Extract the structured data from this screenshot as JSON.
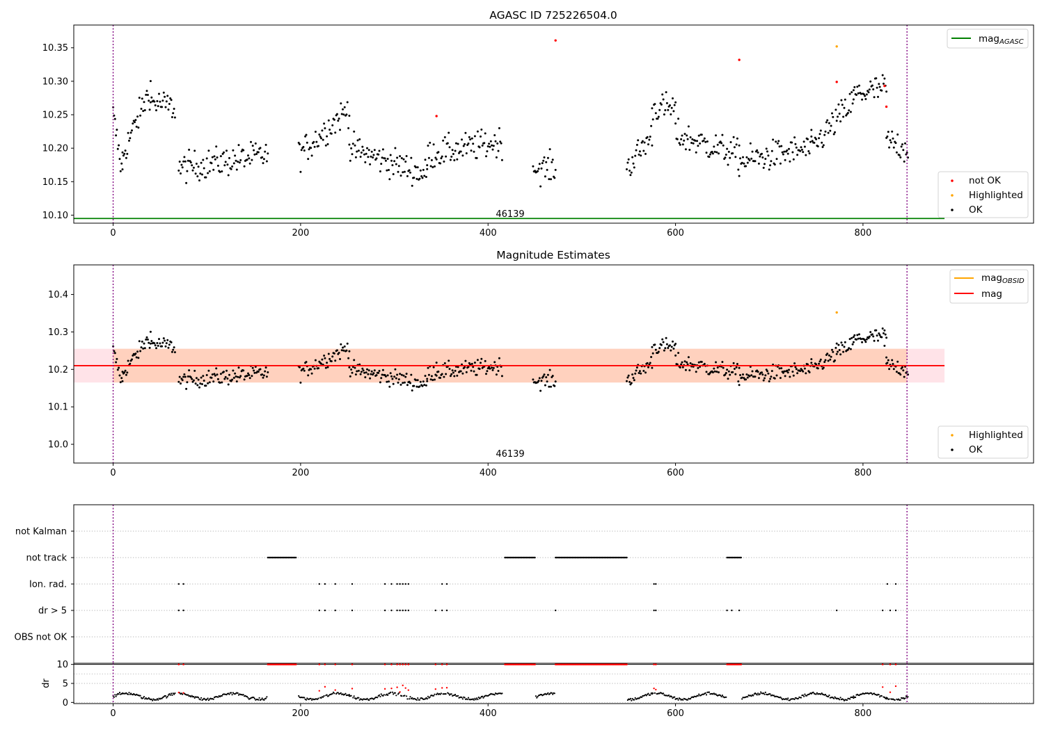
{
  "figure": {
    "title_top": "AGASC ID 725226504.0",
    "title_mid": "Magnitude Estimates",
    "obsid_label_top": "46139",
    "obsid_label_mid": "46139"
  },
  "colors": {
    "ok": "#000000",
    "not_ok": "#ff0000",
    "highlighted": "#ffa500",
    "mag_agasc": "#008000",
    "mag_obsid": "#ffa500",
    "mag": "#ff0000",
    "band_outer": "#ffc0cb",
    "band_inner": "#ffc8a8",
    "obs_boundary": "#800080"
  },
  "legends": {
    "top_line": "mag_AGASC",
    "top_points": [
      "not OK",
      "Highlighted",
      "OK"
    ],
    "mid_lines": [
      "mag_OBSID",
      "mag"
    ],
    "mid_points": [
      "Highlighted",
      "OK"
    ]
  },
  "chart_data": [
    {
      "type": "scatter",
      "title": "AGASC ID 725226504.0",
      "xlabel": "",
      "ylabel": "",
      "xlim": [
        -42,
        982
      ],
      "ylim": [
        10.088,
        10.384
      ],
      "x_ticks": [
        0,
        200,
        400,
        600,
        800
      ],
      "y_ticks": [
        10.1,
        10.15,
        10.2,
        10.25,
        10.3,
        10.35
      ],
      "y_tick_labels": [
        "10.10",
        "10.15",
        "10.20",
        "10.25",
        "10.30",
        "10.35"
      ],
      "obs_boundaries": [
        0,
        847
      ],
      "mag_agasc": 10.095,
      "mag_agasc_range": [
        -42,
        887
      ],
      "segments": [
        {
          "x0": 0,
          "x1": 10,
          "y0": 10.25,
          "y1": 10.16
        },
        {
          "x0": 10,
          "x1": 40,
          "y0": 10.19,
          "y1": 10.29
        },
        {
          "x0": 40,
          "x1": 66,
          "y0": 10.27,
          "y1": 10.26
        },
        {
          "x0": 70,
          "x1": 165,
          "y0": 10.17,
          "y1": 10.19
        },
        {
          "x0": 198,
          "x1": 252,
          "y0": 10.19,
          "y1": 10.26
        },
        {
          "x0": 252,
          "x1": 335,
          "y0": 10.2,
          "y1": 10.16
        },
        {
          "x0": 335,
          "x1": 415,
          "y0": 10.19,
          "y1": 10.21
        },
        {
          "x0": 448,
          "x1": 472,
          "y0": 10.17,
          "y1": 10.17
        },
        {
          "x0": 548,
          "x1": 575,
          "y0": 10.17,
          "y1": 10.22
        },
        {
          "x0": 575,
          "x1": 600,
          "y0": 10.26,
          "y1": 10.26
        },
        {
          "x0": 600,
          "x1": 668,
          "y0": 10.22,
          "y1": 10.19
        },
        {
          "x0": 668,
          "x1": 745,
          "y0": 10.18,
          "y1": 10.2
        },
        {
          "x0": 745,
          "x1": 790,
          "y0": 10.2,
          "y1": 10.27
        },
        {
          "x0": 790,
          "x1": 825,
          "y0": 10.28,
          "y1": 10.29
        },
        {
          "x0": 825,
          "x1": 848,
          "y0": 10.21,
          "y1": 10.2
        }
      ],
      "not_ok_points": [
        [
          345,
          10.248
        ],
        [
          472,
          10.361
        ],
        [
          668,
          10.332
        ],
        [
          772,
          10.299
        ],
        [
          823,
          10.293
        ],
        [
          825,
          10.262
        ]
      ],
      "highlighted_points": [
        [
          772,
          10.352
        ]
      ],
      "legend": {
        "entries": [
          "mag_AGASC",
          "not OK",
          "Highlighted",
          "OK"
        ],
        "placement": "top-right / bottom-right"
      }
    },
    {
      "type": "scatter",
      "title": "Magnitude Estimates",
      "xlim": [
        -42,
        982
      ],
      "ylim": [
        9.95,
        10.479
      ],
      "x_ticks": [
        0,
        200,
        400,
        600,
        800
      ],
      "y_ticks": [
        10.0,
        10.1,
        10.2,
        10.3,
        10.4
      ],
      "y_tick_labels": [
        "10.0",
        "10.1",
        "10.2",
        "10.3",
        "10.4"
      ],
      "mag": 10.21,
      "mag_range": [
        -42,
        887
      ],
      "band_outer": [
        10.165,
        10.255
      ],
      "band_outer_range": [
        -42,
        887
      ],
      "band_inner": [
        10.165,
        10.255
      ],
      "band_inner_range": [
        0,
        847
      ],
      "highlighted_points": [
        [
          772,
          10.352
        ]
      ],
      "legend": {
        "entries": [
          "mag_OBSID",
          "mag",
          "Highlighted",
          "OK"
        ],
        "placement": "top-right / bottom-right"
      }
    },
    {
      "type": "scatter",
      "xlim": [
        -42,
        982
      ],
      "y_categories": [
        "not Kalman",
        "not track",
        "Ion. rad.",
        "dr > 5",
        "OBS not OK"
      ],
      "flags": {
        "not track": [
          [
            165,
            195
          ],
          [
            418,
            450
          ],
          [
            472,
            548
          ],
          [
            655,
            670
          ]
        ],
        "Ion. rad.": [
          [
            70,
            70
          ],
          [
            75,
            75
          ],
          [
            220,
            220
          ],
          [
            226,
            226
          ],
          [
            237,
            237
          ],
          [
            255,
            255
          ],
          [
            290,
            290
          ],
          [
            297,
            297
          ],
          [
            303,
            303
          ],
          [
            306,
            306
          ],
          [
            309,
            309
          ],
          [
            312,
            312
          ],
          [
            315,
            315
          ],
          [
            351,
            351
          ],
          [
            356,
            356
          ],
          [
            577,
            577
          ],
          [
            579,
            579
          ],
          [
            826,
            826
          ],
          [
            835,
            835
          ]
        ],
        "dr > 5": [
          [
            70,
            70
          ],
          [
            75,
            75
          ],
          [
            220,
            220
          ],
          [
            226,
            226
          ],
          [
            237,
            237
          ],
          [
            255,
            255
          ],
          [
            290,
            290
          ],
          [
            297,
            297
          ],
          [
            303,
            303
          ],
          [
            306,
            306
          ],
          [
            309,
            309
          ],
          [
            312,
            312
          ],
          [
            315,
            315
          ],
          [
            344,
            344
          ],
          [
            351,
            351
          ],
          [
            356,
            356
          ],
          [
            472,
            472
          ],
          [
            577,
            577
          ],
          [
            579,
            579
          ],
          [
            655,
            655
          ],
          [
            660,
            660
          ],
          [
            668,
            668
          ],
          [
            772,
            772
          ],
          [
            821,
            821
          ],
          [
            829,
            829
          ],
          [
            835,
            835
          ]
        ]
      },
      "x_ticks": [
        0,
        200,
        400,
        600,
        800
      ]
    },
    {
      "type": "scatter",
      "ylabel": "dr",
      "xlim": [
        -42,
        982
      ],
      "ylim": [
        -0.3,
        10.3
      ],
      "y_ticks": [
        0,
        5,
        10
      ],
      "y_tick_labels": [
        "0",
        "5",
        "10"
      ],
      "x_ticks": [
        0,
        200,
        400,
        600,
        800
      ],
      "x_tick_labels": [
        "0",
        "200",
        "400",
        "600",
        "800"
      ],
      "capped_value": 10,
      "red_runs": [
        [
          165,
          195
        ],
        [
          418,
          450
        ],
        [
          472,
          548
        ],
        [
          655,
          670
        ]
      ],
      "red_singles": [
        70,
        75,
        220,
        226,
        237,
        255,
        290,
        297,
        303,
        306,
        309,
        312,
        315,
        344,
        351,
        356,
        577,
        579,
        821,
        829,
        835
      ]
    }
  ]
}
